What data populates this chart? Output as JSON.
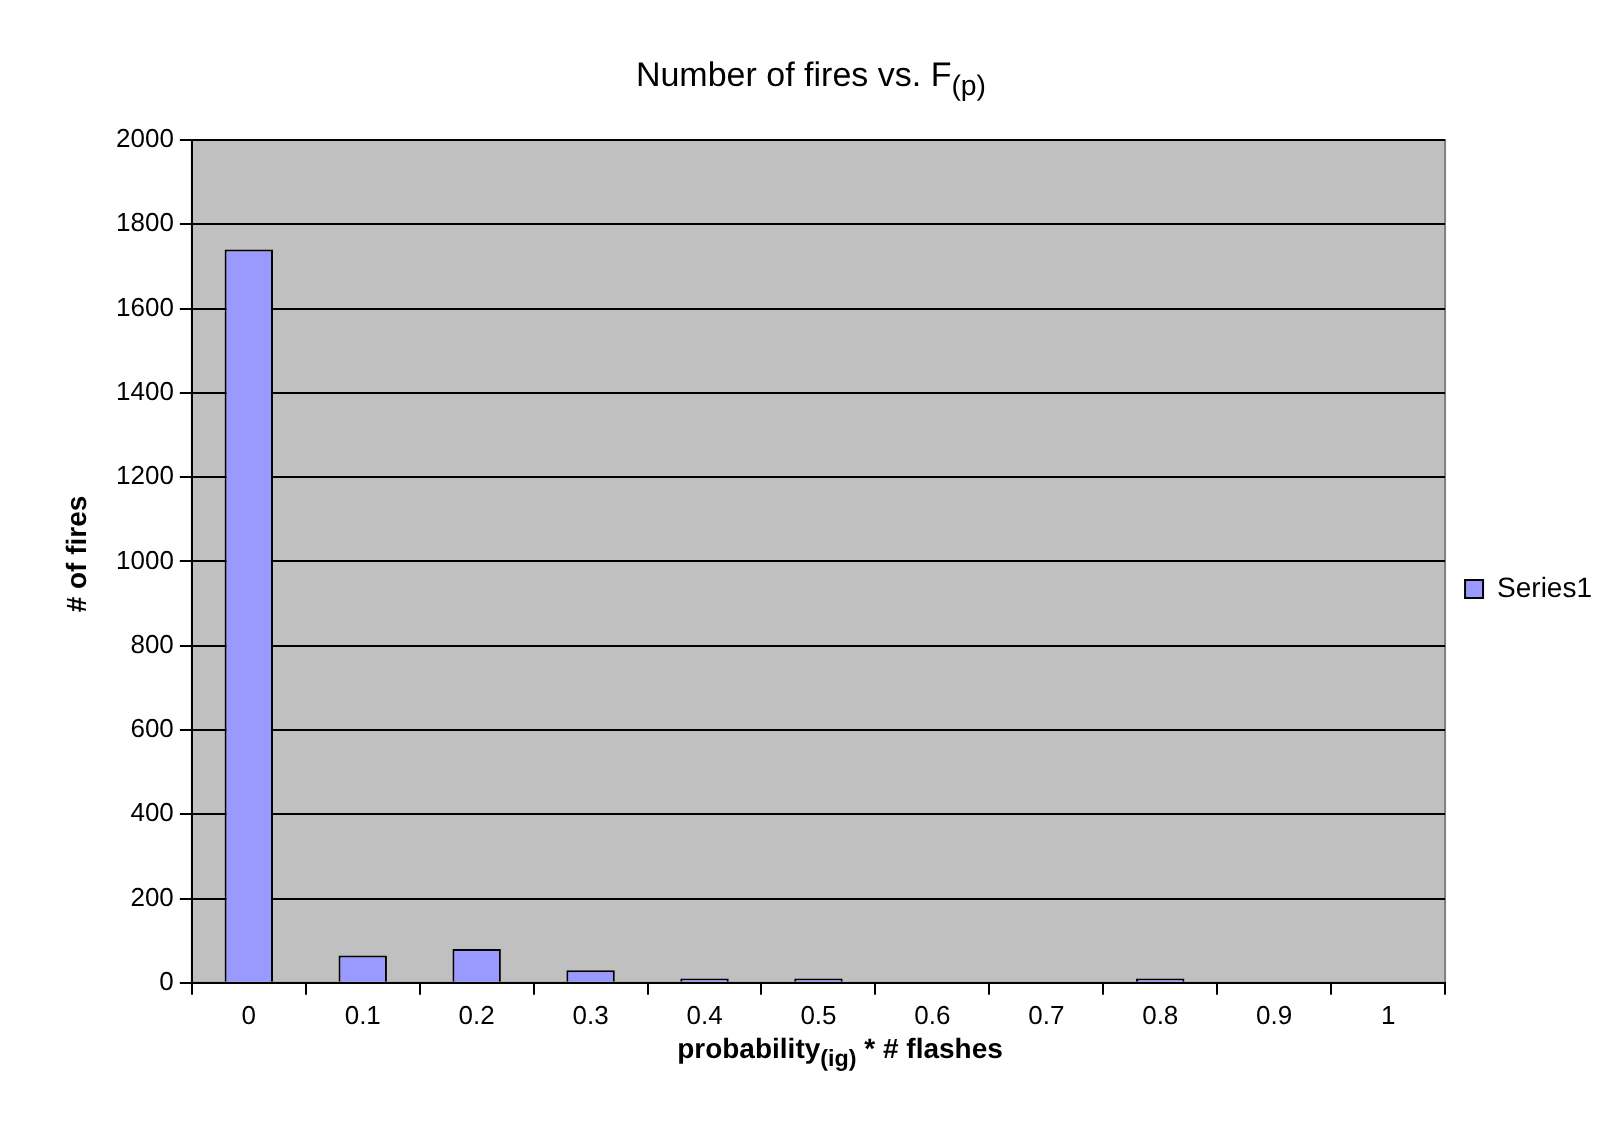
{
  "chart_data": {
    "type": "bar",
    "title": "Number of fires vs. F$_{(p)}$",
    "xlabel": "probability$_{(ig)}$ * # flashes",
    "ylabel": "# of fires",
    "categories": [
      "0",
      "0.1",
      "0.2",
      "0.3",
      "0.4",
      "0.5",
      "0.6",
      "0.7",
      "0.8",
      "0.9",
      "1"
    ],
    "series": [
      {
        "name": "Series1",
        "color": "#9999ff",
        "values": [
          1740,
          65,
          80,
          30,
          10,
          10,
          0,
          0,
          10,
          0,
          0
        ]
      }
    ],
    "ylim": [
      0,
      2000
    ],
    "yticks": [
      0,
      200,
      400,
      600,
      800,
      1000,
      1200,
      1400,
      1600,
      1800,
      2000
    ],
    "grid": "y",
    "legend": "right"
  }
}
